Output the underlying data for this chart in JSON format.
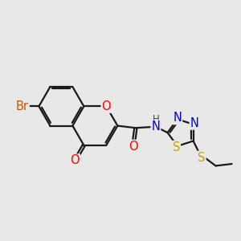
{
  "bg_color": "#e8e8e8",
  "bond_color": "#1a1a1a",
  "atom_colors": {
    "O": "#ff0000",
    "N": "#0000dd",
    "S_ring": "#c8a000",
    "S_ethyl": "#c8a000",
    "Br": "#cc5500",
    "C": "#1a1a1a",
    "H": "#444444"
  },
  "bond_width": 1.6,
  "font_size": 10.5,
  "figsize": [
    3.0,
    3.0
  ],
  "dpi": 100
}
